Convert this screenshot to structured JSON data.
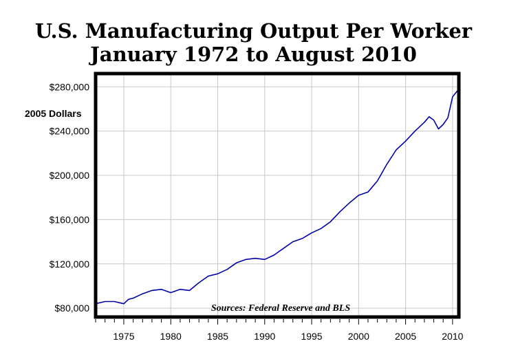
{
  "chart_data": {
    "type": "line",
    "title": "U.S. Manufacturing Output Per Worker",
    "subtitle": "January 1972 to August 2010",
    "ylabel": "2005 Dollars",
    "xlabel": "",
    "annotation": "Sources: Federal Reserve and BLS",
    "xlim": [
      1972,
      2010.67
    ],
    "ylim": [
      72000,
      292000
    ],
    "y_ticks": [
      {
        "value": 80000,
        "label": "$80,000"
      },
      {
        "value": 120000,
        "label": "$120,000"
      },
      {
        "value": 160000,
        "label": "$160,000"
      },
      {
        "value": 200000,
        "label": "$200,000"
      },
      {
        "value": 240000,
        "label": "$240,000"
      },
      {
        "value": 280000,
        "label": "$280,000"
      }
    ],
    "x_ticks": [
      {
        "value": 1975,
        "label": "1975"
      },
      {
        "value": 1980,
        "label": "1980"
      },
      {
        "value": 1985,
        "label": "1985"
      },
      {
        "value": 1990,
        "label": "1990"
      },
      {
        "value": 1995,
        "label": "1995"
      },
      {
        "value": 2000,
        "label": "2000"
      },
      {
        "value": 2005,
        "label": "2005"
      },
      {
        "value": 2010,
        "label": "2010"
      }
    ],
    "grid": true,
    "line_color": "#0000aa",
    "series": [
      {
        "x": [
          1972.0,
          1973.0,
          1974.0,
          1975.0,
          1975.5,
          1976.0,
          1977.0,
          1978.0,
          1979.0,
          1980.0,
          1981.0,
          1982.0,
          1983.0,
          1984.0,
          1985.0,
          1986.0,
          1987.0,
          1988.0,
          1989.0,
          1990.0,
          1991.0,
          1992.0,
          1993.0,
          1994.0,
          1995.0,
          1996.0,
          1997.0,
          1998.0,
          1999.0,
          2000.0,
          2001.0,
          2002.0,
          2003.0,
          2004.0,
          2005.0,
          2006.0,
          2007.0,
          2007.5,
          2008.0,
          2008.5,
          2009.0,
          2009.5,
          2010.0,
          2010.67
        ],
        "values": [
          84000,
          86000,
          86000,
          84000,
          88000,
          89000,
          93000,
          96000,
          97000,
          94000,
          97000,
          96000,
          103000,
          109000,
          111000,
          115000,
          121000,
          124000,
          125000,
          124000,
          128000,
          134000,
          140000,
          143000,
          148000,
          152000,
          158000,
          167000,
          175000,
          182000,
          185000,
          195000,
          210000,
          223000,
          231000,
          240000,
          248000,
          253000,
          250000,
          242000,
          246000,
          252000,
          271000,
          278000
        ]
      }
    ]
  }
}
